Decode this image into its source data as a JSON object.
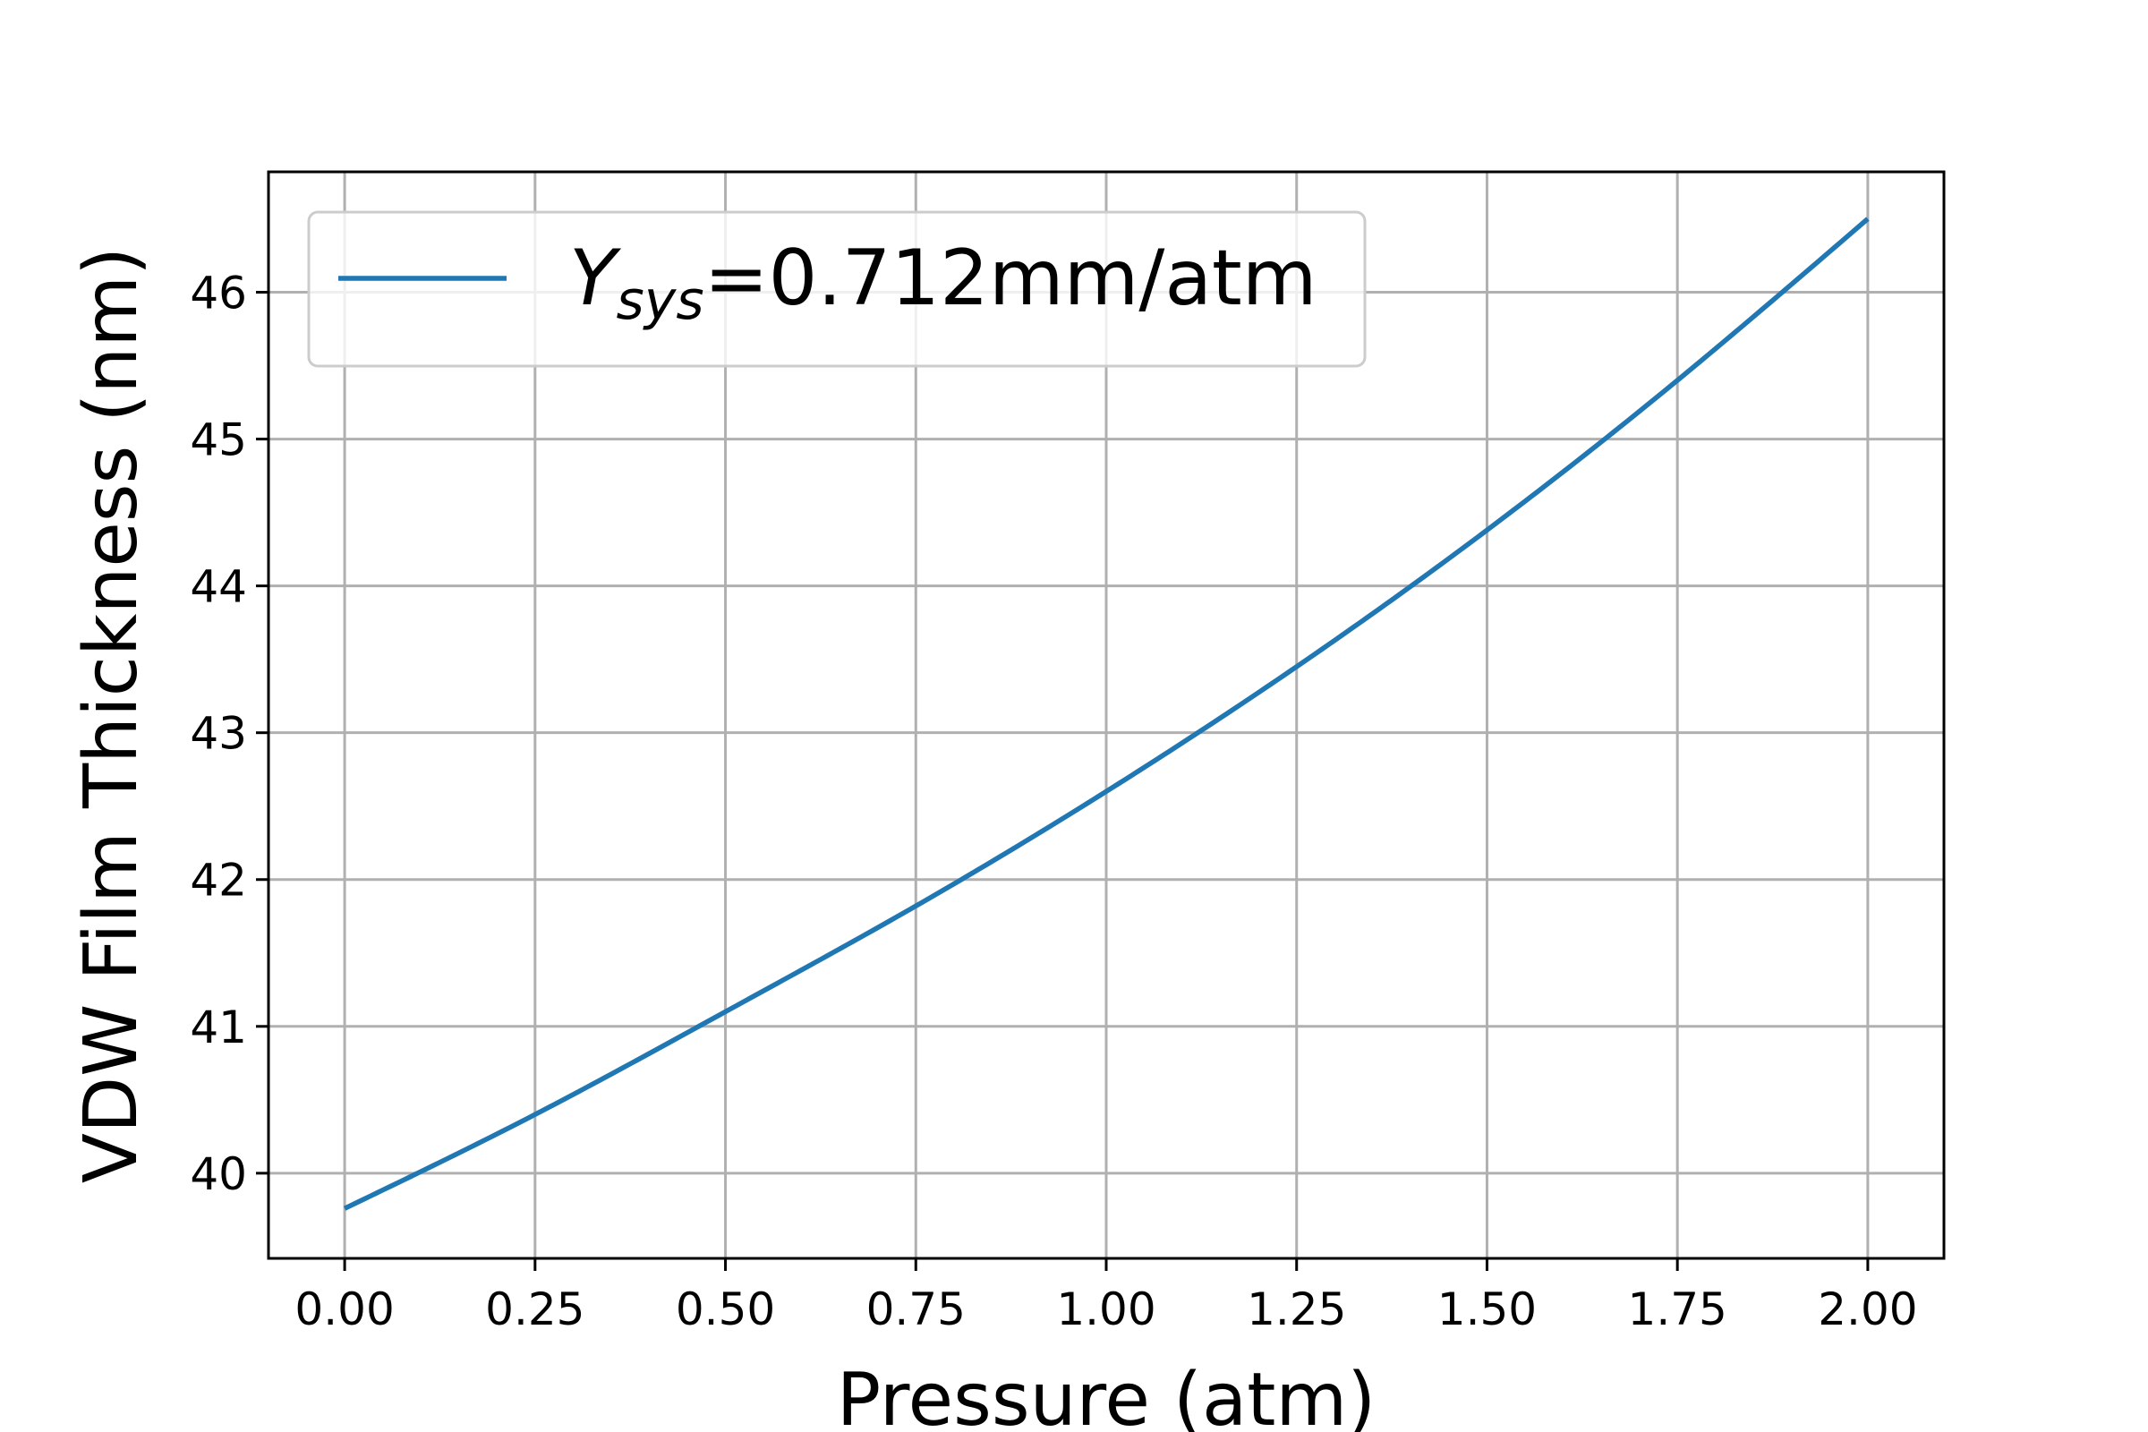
{
  "chart_data": {
    "type": "line",
    "xlabel": "Pressure (atm)",
    "ylabel": "VDW Film Thickness (nm)",
    "xlim": [
      -0.1,
      2.1
    ],
    "ylim": [
      39.42,
      46.82
    ],
    "x_ticks": [
      0.0,
      0.25,
      0.5,
      0.75,
      1.0,
      1.25,
      1.5,
      1.75,
      2.0
    ],
    "x_tick_labels": [
      "0.00",
      "0.25",
      "0.50",
      "0.75",
      "1.00",
      "1.25",
      "1.50",
      "1.75",
      "2.00"
    ],
    "y_ticks": [
      40,
      41,
      42,
      43,
      44,
      45,
      46
    ],
    "y_tick_labels": [
      "40",
      "41",
      "42",
      "43",
      "44",
      "45",
      "46"
    ],
    "grid": true,
    "legend_position": "top-left",
    "series": [
      {
        "name": "Y_sys=0.712mm/atm",
        "legend": {
          "symbol": "Y",
          "subscript": "sys",
          "rest": "=0.712mm/atm"
        },
        "color": "#1f77b4",
        "x": [
          0.0,
          0.25,
          0.5,
          0.75,
          1.0,
          1.25,
          1.5,
          1.75,
          2.0
        ],
        "y": [
          39.76,
          40.4,
          41.1,
          41.82,
          42.6,
          43.45,
          44.38,
          45.4,
          46.5
        ]
      }
    ]
  }
}
